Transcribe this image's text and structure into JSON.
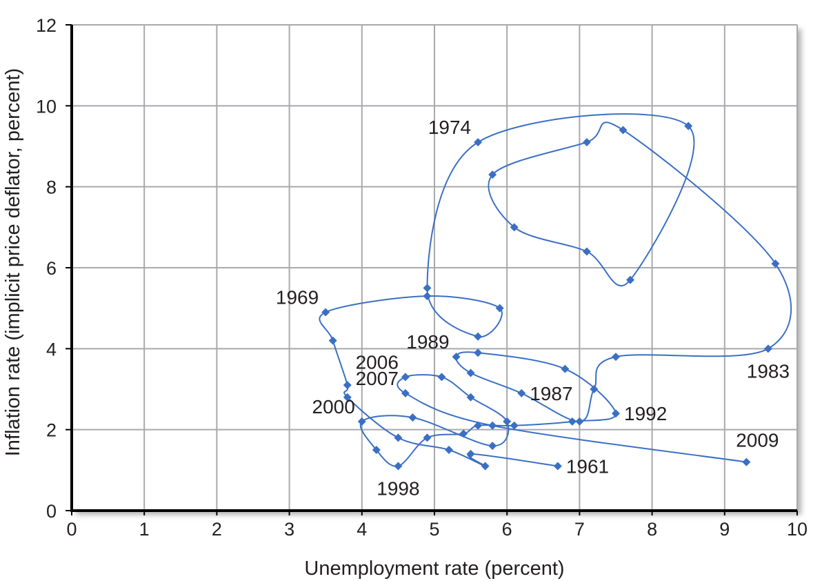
{
  "chart_data": {
    "type": "line",
    "xlabel": "Unemployment rate (percent)",
    "ylabel": "Inflation rate (implicit price deflator, percent)",
    "xlim": [
      0,
      10
    ],
    "ylim": [
      0,
      12
    ],
    "xticks": [
      "0",
      "1",
      "2",
      "3",
      "4",
      "5",
      "6",
      "7",
      "8",
      "9",
      "10"
    ],
    "yticks": [
      "0",
      "2",
      "4",
      "6",
      "8",
      "10",
      "12"
    ],
    "grid": true,
    "colors": {
      "series": "#3a6fc4",
      "grid": "#a7a9ac",
      "axis": "#000000",
      "panel_shadow": "#b3b3b3"
    },
    "series": [
      {
        "points": [
          [
            6.7,
            1.1
          ],
          [
            5.5,
            1.4
          ],
          [
            5.7,
            1.1
          ],
          [
            5.2,
            1.5
          ],
          [
            4.5,
            1.8
          ],
          [
            3.8,
            2.8
          ],
          [
            3.8,
            3.1
          ],
          [
            3.6,
            4.2
          ],
          [
            3.5,
            4.9
          ],
          [
            4.9,
            5.3
          ],
          [
            5.9,
            5.0
          ],
          [
            5.6,
            4.3
          ],
          [
            4.9,
            5.5
          ],
          [
            5.6,
            9.1
          ],
          [
            8.5,
            9.5
          ],
          [
            7.7,
            5.7
          ],
          [
            7.1,
            6.4
          ],
          [
            6.1,
            7.0
          ],
          [
            5.8,
            8.3
          ],
          [
            7.1,
            9.1
          ],
          [
            7.6,
            9.4
          ],
          [
            9.7,
            6.1
          ],
          [
            9.6,
            4.0
          ],
          [
            7.5,
            3.8
          ],
          [
            7.2,
            3.0
          ],
          [
            7.0,
            2.2
          ],
          [
            6.2,
            2.9
          ],
          [
            5.5,
            3.4
          ],
          [
            5.3,
            3.8
          ],
          [
            5.6,
            3.9
          ],
          [
            6.8,
            3.5
          ],
          [
            7.5,
            2.4
          ],
          [
            6.9,
            2.2
          ],
          [
            6.1,
            2.1
          ],
          [
            5.6,
            2.1
          ],
          [
            5.4,
            1.9
          ],
          [
            4.9,
            1.8
          ],
          [
            4.5,
            1.1
          ],
          [
            4.2,
            1.5
          ],
          [
            4.0,
            2.2
          ],
          [
            4.7,
            2.3
          ],
          [
            5.8,
            1.6
          ],
          [
            6.0,
            2.2
          ],
          [
            5.5,
            2.8
          ],
          [
            5.1,
            3.3
          ],
          [
            4.6,
            3.3
          ],
          [
            4.6,
            2.9
          ],
          [
            5.8,
            2.1
          ],
          [
            9.3,
            1.2
          ]
        ]
      }
    ],
    "annotations": [
      {
        "text": "1961",
        "x": 6.7,
        "y": 1.1,
        "anchor": "start"
      },
      {
        "text": "1969",
        "x": 3.5,
        "y": 4.9,
        "anchor": "end"
      },
      {
        "text": "1974",
        "x": 5.6,
        "y": 9.1,
        "anchor": "end"
      },
      {
        "text": "1983",
        "x": 9.6,
        "y": 4.0,
        "anchor": "middle-below"
      },
      {
        "text": "1987",
        "x": 6.2,
        "y": 2.9,
        "anchor": "start"
      },
      {
        "text": "1989",
        "x": 5.3,
        "y": 3.8,
        "anchor": "end"
      },
      {
        "text": "1992",
        "x": 7.5,
        "y": 2.4,
        "anchor": "start"
      },
      {
        "text": "1998",
        "x": 4.5,
        "y": 1.1,
        "anchor": "middle-below"
      },
      {
        "text": "2000",
        "x": 4.0,
        "y": 2.2,
        "anchor": "end"
      },
      {
        "text": "2006",
        "x": 4.6,
        "y": 3.3,
        "anchor": "end"
      },
      {
        "text": "2007",
        "x": 4.6,
        "y": 2.9,
        "anchor": "end"
      },
      {
        "text": "2009",
        "x": 9.3,
        "y": 1.2,
        "anchor": "above"
      }
    ]
  }
}
